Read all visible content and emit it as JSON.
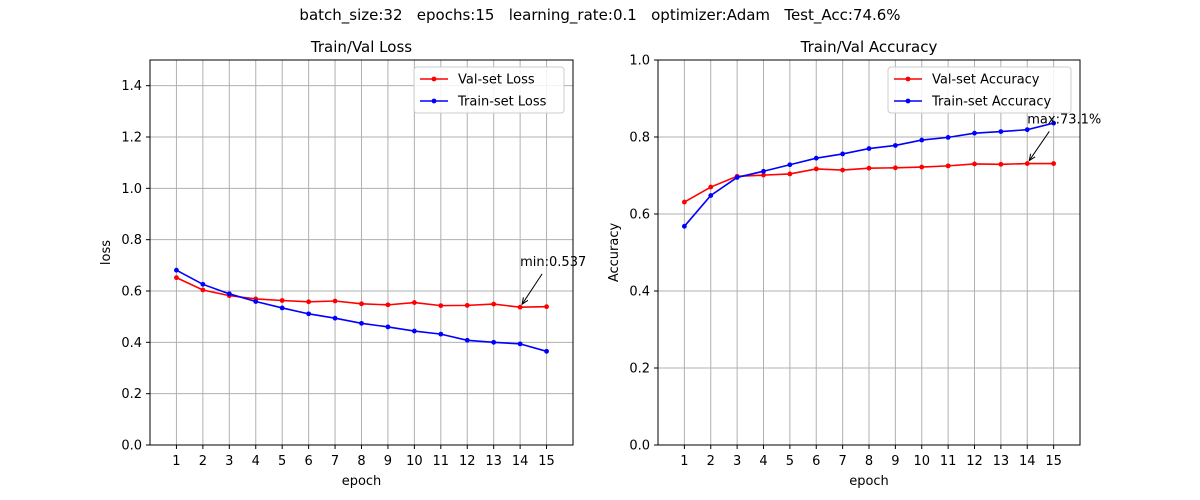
{
  "suptitle": "batch_size:32   epochs:15   learning_rate:0.1   optimizer:Adam   Test_Acc:74.6%",
  "chart_data": [
    {
      "type": "line",
      "title": "Train/Val Loss",
      "xlabel": "epoch",
      "ylabel": "loss",
      "x": [
        1,
        2,
        3,
        4,
        5,
        6,
        7,
        8,
        9,
        10,
        11,
        12,
        13,
        14,
        15
      ],
      "xlim": [
        0,
        16
      ],
      "ylim": [
        0,
        1.5
      ],
      "yticks": [
        0.0,
        0.2,
        0.4,
        0.6,
        0.8,
        1.0,
        1.2,
        1.4
      ],
      "ytick_labels": [
        "0.0",
        "0.2",
        "0.4",
        "0.6",
        "0.8",
        "1.0",
        "1.2",
        "1.4"
      ],
      "grid": true,
      "legend_position": "top-right",
      "series": [
        {
          "name": "Val-set Loss",
          "color": "#ff0000",
          "values": [
            0.652,
            0.604,
            0.582,
            0.569,
            0.563,
            0.558,
            0.561,
            0.55,
            0.546,
            0.555,
            0.543,
            0.544,
            0.549,
            0.537,
            0.539
          ]
        },
        {
          "name": "Train-set Loss",
          "color": "#0000ff",
          "values": [
            0.681,
            0.626,
            0.589,
            0.559,
            0.534,
            0.511,
            0.494,
            0.474,
            0.46,
            0.444,
            0.432,
            0.408,
            0.4,
            0.394,
            0.365
          ]
        }
      ],
      "annotation": {
        "text": "min:0.537",
        "x": 14,
        "y": 0.537,
        "text_x": 14,
        "text_y": 0.69
      }
    },
    {
      "type": "line",
      "title": "Train/Val Accuracy",
      "xlabel": "epoch",
      "ylabel": "Accuracy",
      "x": [
        1,
        2,
        3,
        4,
        5,
        6,
        7,
        8,
        9,
        10,
        11,
        12,
        13,
        14,
        15
      ],
      "xlim": [
        0,
        16
      ],
      "ylim": [
        0,
        1.0
      ],
      "yticks": [
        0.0,
        0.2,
        0.4,
        0.6,
        0.8,
        1.0
      ],
      "ytick_labels": [
        "0.0",
        "0.2",
        "0.4",
        "0.6",
        "0.8",
        "1.0"
      ],
      "grid": true,
      "legend_position": "top-right",
      "series": [
        {
          "name": "Val-set Accuracy",
          "color": "#ff0000",
          "values": [
            0.631,
            0.67,
            0.698,
            0.701,
            0.704,
            0.717,
            0.714,
            0.719,
            0.72,
            0.722,
            0.725,
            0.73,
            0.729,
            0.731,
            0.731
          ]
        },
        {
          "name": "Train-set Accuracy",
          "color": "#0000ff",
          "values": [
            0.568,
            0.648,
            0.695,
            0.711,
            0.728,
            0.745,
            0.756,
            0.77,
            0.778,
            0.792,
            0.799,
            0.81,
            0.814,
            0.819,
            0.836
          ]
        }
      ],
      "annotation": {
        "text": "max:73.1%",
        "x": 14,
        "y": 0.731,
        "text_x": 14,
        "text_y": 0.83
      }
    }
  ]
}
